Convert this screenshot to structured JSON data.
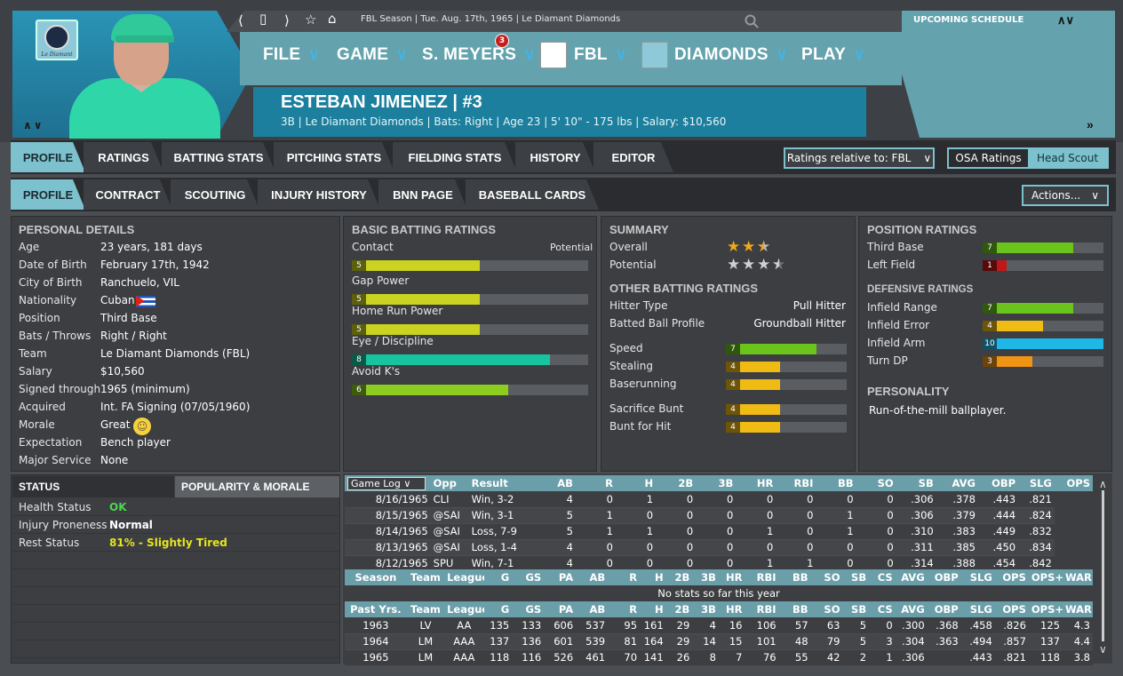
{
  "nav": {
    "breadcrumb": "FBL Season  |  Tue. Aug. 17th, 1965  |  Le Diamant Diamonds",
    "icons": [
      "back-icon",
      "page-icon",
      "forward-icon",
      "star-icon",
      "home-icon",
      "search-icon"
    ]
  },
  "team_logo_caption": "Le Diamant",
  "menu": [
    {
      "label": "FILE"
    },
    {
      "label": "GAME"
    },
    {
      "label": "S. MEYERS",
      "badge": "3"
    },
    {
      "label": "FBL"
    },
    {
      "label": "DIAMONDS"
    },
    {
      "label": "PLAY"
    }
  ],
  "player": {
    "name": "ESTEBAN JIMENEZ  |  #3",
    "info": "3B | Le Diamant Diamonds  |  Bats: Right  |  Age 23  |  5' 10\" - 175 lbs  |  Salary: $10,560"
  },
  "schedule": {
    "title": "UPCOMING SCHEDULE"
  },
  "tabs1": [
    "PROFILE",
    "RATINGS",
    "BATTING STATS",
    "PITCHING STATS",
    "FIELDING STATS",
    "HISTORY",
    "EDITOR"
  ],
  "tabs2": [
    "PROFILE",
    "CONTRACT",
    "SCOUTING",
    "INJURY HISTORY",
    "BNN PAGE",
    "BASEBALL CARDS"
  ],
  "relative_to": "Ratings relative to: FBL",
  "osa": {
    "left": "OSA Ratings",
    "right": "Head Scout"
  },
  "actions": "Actions...",
  "personal": {
    "title": "PERSONAL DETAILS",
    "rows": [
      [
        "Age",
        "23 years, 181 days"
      ],
      [
        "Date of Birth",
        "February 17th, 1942"
      ],
      [
        "City of Birth",
        "Ranchuelo, VIL"
      ],
      [
        "Nationality",
        "Cuban"
      ],
      [
        "Position",
        "Third Base"
      ],
      [
        "Bats / Throws",
        "Right / Right"
      ],
      [
        "Team",
        "Le Diamant Diamonds (FBL)"
      ],
      [
        "Salary",
        "$10,560"
      ],
      [
        "Signed through",
        "1965 (minimum)"
      ],
      [
        "Acquired",
        "Int. FA Signing (07/05/1960)"
      ],
      [
        "Morale",
        "Great"
      ],
      [
        "Expectation",
        "Bench player"
      ],
      [
        "Major Service",
        "None"
      ]
    ]
  },
  "basic_batting": {
    "title": "BASIC BATTING RATINGS",
    "potential_label": "Potential",
    "items": [
      {
        "label": "Contact",
        "value": "5",
        "pct": 0.54,
        "color": "#c9d320"
      },
      {
        "label": "Gap Power",
        "value": "5",
        "pct": 0.54,
        "color": "#c9d320"
      },
      {
        "label": "Home Run Power",
        "value": "5",
        "pct": 0.54,
        "color": "#c9d320"
      },
      {
        "label": "Eye / Discipline",
        "value": "8",
        "pct": 0.84,
        "color": "#17c4a0"
      },
      {
        "label": "Avoid K's",
        "value": "6",
        "pct": 0.66,
        "color": "#8ccd20"
      }
    ]
  },
  "summary": {
    "title": "SUMMARY",
    "overall_label": "Overall",
    "potential_label": "Potential",
    "overall_stars": 2.5,
    "potential_stars": 3.5
  },
  "other_batting": {
    "title": "OTHER BATTING RATINGS",
    "text_rows": [
      [
        "Hitter Type",
        "Pull Hitter"
      ],
      [
        "Batted Ball Profile",
        "Groundball Hitter"
      ]
    ],
    "bars": [
      {
        "label": "Speed",
        "value": "7",
        "pct": 0.75,
        "color": "#6ac41c"
      },
      {
        "label": "Stealing",
        "value": "4",
        "pct": 0.45,
        "color": "#f0bc14"
      },
      {
        "label": "Baserunning",
        "value": "4",
        "pct": 0.45,
        "color": "#f0bc14"
      },
      {
        "label": "Sacrifice Bunt",
        "value": "4",
        "pct": 0.45,
        "color": "#f0bc14"
      },
      {
        "label": "Bunt for Hit",
        "value": "4",
        "pct": 0.45,
        "color": "#f0bc14"
      }
    ]
  },
  "position": {
    "title": "POSITION RATINGS",
    "bars": [
      {
        "label": "Third Base",
        "value": "7",
        "pct": 0.75,
        "color": "#6ac41c"
      },
      {
        "label": "Left Field",
        "value": "1",
        "pct": 0.2,
        "color": "#c01818"
      }
    ]
  },
  "defensive": {
    "title": "DEFENSIVE RATINGS",
    "bars": [
      {
        "label": "Infield Range",
        "value": "7",
        "pct": 0.75,
        "color": "#6ac41c"
      },
      {
        "label": "Infield Error",
        "value": "4",
        "pct": 0.5,
        "color": "#f0bc14"
      },
      {
        "label": "Infield Arm",
        "value": "10",
        "pct": 1.0,
        "color": "#1fb6e8"
      },
      {
        "label": "Turn DP",
        "value": "3",
        "pct": 0.41,
        "color": "#f09414"
      }
    ]
  },
  "personality": {
    "title": "PERSONALITY",
    "text": "Run-of-the-mill ballplayer."
  },
  "status": {
    "tab_active": "STATUS",
    "tab_other": "POPULARITY & MORALE",
    "rows": [
      {
        "label": "Health Status",
        "value": "OK",
        "color": "#4bd84b"
      },
      {
        "label": "Injury Proneness",
        "value": "Normal",
        "color": "#ffffff"
      },
      {
        "label": "Rest Status",
        "value": "81% - Slightly Tired",
        "color": "#e6e61e"
      }
    ]
  },
  "gamelog": {
    "selector": "Game Log",
    "headers": [
      "Opp",
      "Result",
      "AB",
      "R",
      "H",
      "2B",
      "3B",
      "HR",
      "RBI",
      "BB",
      "SO",
      "SB",
      "AVG",
      "OBP",
      "SLG",
      "OPS"
    ],
    "rows": [
      [
        "8/16/1965",
        "CLI",
        "Win, 3-2",
        "4",
        "0",
        "1",
        "0",
        "0",
        "0",
        "0",
        "0",
        "0",
        ".306",
        ".378",
        ".443",
        ".821"
      ],
      [
        "8/15/1965",
        "@SAI",
        "Win, 3-1",
        "5",
        "1",
        "0",
        "0",
        "0",
        "0",
        "0",
        "1",
        "0",
        ".306",
        ".379",
        ".444",
        ".824"
      ],
      [
        "8/14/1965",
        "@SAI",
        "Loss, 7-9",
        "5",
        "1",
        "1",
        "0",
        "0",
        "1",
        "0",
        "1",
        "0",
        ".310",
        ".383",
        ".449",
        ".832"
      ],
      [
        "8/13/1965",
        "@SAI",
        "Loss, 1-4",
        "4",
        "0",
        "0",
        "0",
        "0",
        "0",
        "0",
        "0",
        "0",
        ".311",
        ".385",
        ".450",
        ".834"
      ],
      [
        "8/12/1965",
        "SPU",
        "Win, 7-1",
        "4",
        "0",
        "0",
        "0",
        "0",
        "1",
        "1",
        "0",
        "0",
        ".314",
        ".388",
        ".454",
        ".842"
      ]
    ]
  },
  "season": {
    "headers": [
      "Season",
      "Team",
      "League",
      "G",
      "GS",
      "PA",
      "AB",
      "R",
      "H",
      "2B",
      "3B",
      "HR",
      "RBI",
      "BB",
      "SO",
      "SB",
      "CS",
      "AVG",
      "OBP",
      "SLG",
      "OPS",
      "OPS+",
      "WAR"
    ],
    "empty": "No stats so far this year"
  },
  "past": {
    "headers": [
      "Past Yrs.",
      "Team",
      "League",
      "G",
      "GS",
      "PA",
      "AB",
      "R",
      "H",
      "2B",
      "3B",
      "HR",
      "RBI",
      "BB",
      "SO",
      "SB",
      "CS",
      "AVG",
      "OBP",
      "SLG",
      "OPS",
      "OPS+",
      "WAR"
    ],
    "rows": [
      [
        "1963",
        "LV",
        "AA",
        "135",
        "133",
        "606",
        "537",
        "95",
        "161",
        "29",
        "4",
        "16",
        "106",
        "57",
        "63",
        "5",
        "0",
        ".300",
        ".368",
        ".458",
        ".826",
        "125",
        "4.3"
      ],
      [
        "1964",
        "LM",
        "AAA",
        "137",
        "136",
        "601",
        "539",
        "81",
        "164",
        "29",
        "14",
        "15",
        "101",
        "48",
        "79",
        "5",
        "3",
        ".304",
        ".363",
        ".494",
        ".857",
        "137",
        "4.4"
      ],
      [
        "1965",
        "LM",
        "AAA",
        "118",
        "116",
        "526",
        "461",
        "70",
        "141",
        "26",
        "8",
        "7",
        "76",
        "55",
        "42",
        "2",
        "1",
        ".306",
        "",
        ".443",
        ".821",
        "118",
        "3.8"
      ]
    ]
  }
}
